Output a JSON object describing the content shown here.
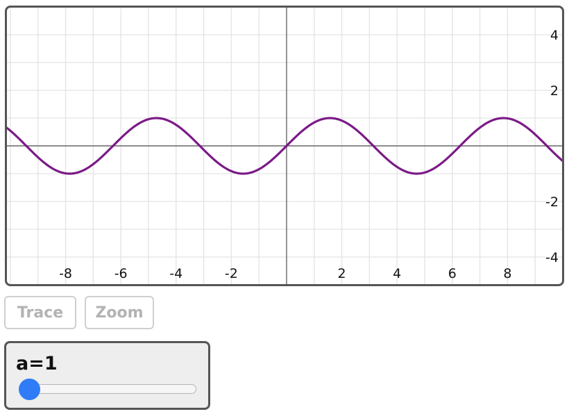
{
  "graph": {
    "x_range": [
      -10.2,
      10.05
    ],
    "y_range": [
      -5.05,
      5.05
    ],
    "x_ticks": [
      "-8",
      "-6",
      "-4",
      "-2",
      "2",
      "4",
      "6",
      "8"
    ],
    "x_tick_values": [
      -8,
      -6,
      -4,
      -2,
      2,
      4,
      6,
      8
    ],
    "y_ticks": [
      "4",
      "2",
      "-2",
      "-4"
    ],
    "y_tick_values": [
      4,
      2,
      -2,
      -4
    ],
    "grid_step": 1,
    "curve_color": "#7b1a87",
    "grid_color": "#e3e3e3",
    "axis_color": "#666666"
  },
  "chart_data": {
    "type": "line",
    "function": "y = a*sin(x)",
    "a": 1,
    "xlim": [
      -10.2,
      10.05
    ],
    "ylim": [
      -5.05,
      5.05
    ],
    "grid": true,
    "series": [
      {
        "x": [
          -10,
          -8,
          -6,
          -4.71,
          -4,
          -2,
          -1.57,
          0,
          1.57,
          2,
          4,
          4.71,
          6,
          7.85,
          8,
          10
        ],
        "y": [
          0.54,
          -0.99,
          0.28,
          1.0,
          0.76,
          -0.91,
          -1.0,
          0,
          1.0,
          0.91,
          -0.76,
          -1.0,
          -0.28,
          1.0,
          0.99,
          -0.54
        ]
      }
    ]
  },
  "buttons": {
    "trace_label": "Trace",
    "zoom_label": "Zoom"
  },
  "slider": {
    "label": "a=1",
    "value": 1,
    "fraction": 0
  }
}
